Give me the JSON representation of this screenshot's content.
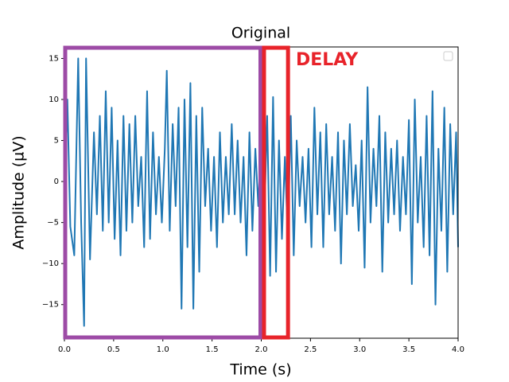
{
  "chart_data": {
    "type": "line",
    "title": "Original",
    "x_label": "Time (s)",
    "y_label": "Amplitude (µV)",
    "annotation": "DELAY",
    "regions": [
      {
        "x0": 0,
        "x1": 2.0,
        "color": "#9d4ba6"
      },
      {
        "x0": 2.02,
        "x1": 2.28,
        "color": "#e8232a"
      }
    ],
    "xlim": [
      0,
      4
    ],
    "ylim": [
      -19.1,
      16.4
    ],
    "xticks": [
      {
        "value": 0,
        "label": "0.0"
      },
      {
        "value": 0.5,
        "label": "0.5"
      },
      {
        "value": 1,
        "label": "1.0"
      },
      {
        "value": 1.5,
        "label": "1.5"
      },
      {
        "value": 2,
        "label": "2.0"
      },
      {
        "value": 2.5,
        "label": "2.5"
      },
      {
        "value": 3,
        "label": "3.0"
      },
      {
        "value": 3.5,
        "label": "3.5"
      },
      {
        "value": 4,
        "label": "4.0"
      }
    ],
    "yticks": [
      {
        "value": -15,
        "label": "−15"
      },
      {
        "value": -10,
        "label": "−10"
      },
      {
        "value": -5,
        "label": "−5"
      },
      0,
      5,
      10,
      15
    ],
    "series": [
      {
        "color": "#1f77b4",
        "x": [
          0.0,
          0.03,
          0.06,
          0.1,
          0.14,
          0.17,
          0.2,
          0.22,
          0.26,
          0.3,
          0.33,
          0.36,
          0.39,
          0.42,
          0.45,
          0.48,
          0.51,
          0.54,
          0.57,
          0.6,
          0.63,
          0.66,
          0.69,
          0.72,
          0.75,
          0.78,
          0.81,
          0.84,
          0.87,
          0.9,
          0.93,
          0.96,
          0.99,
          1.02,
          1.04,
          1.07,
          1.1,
          1.13,
          1.16,
          1.19,
          1.22,
          1.25,
          1.28,
          1.31,
          1.34,
          1.37,
          1.4,
          1.43,
          1.46,
          1.49,
          1.52,
          1.55,
          1.58,
          1.61,
          1.64,
          1.67,
          1.7,
          1.73,
          1.76,
          1.79,
          1.82,
          1.85,
          1.88,
          1.91,
          1.94,
          1.97,
          2.0,
          2.03,
          2.06,
          2.09,
          2.12,
          2.15,
          2.18,
          2.21,
          2.24,
          2.27,
          2.3,
          2.33,
          2.36,
          2.39,
          2.42,
          2.45,
          2.48,
          2.51,
          2.54,
          2.57,
          2.6,
          2.63,
          2.66,
          2.69,
          2.72,
          2.75,
          2.78,
          2.81,
          2.84,
          2.87,
          2.9,
          2.93,
          2.96,
          2.99,
          3.02,
          3.05,
          3.08,
          3.11,
          3.14,
          3.17,
          3.2,
          3.23,
          3.26,
          3.29,
          3.32,
          3.35,
          3.38,
          3.41,
          3.44,
          3.47,
          3.5,
          3.53,
          3.56,
          3.59,
          3.62,
          3.65,
          3.68,
          3.71,
          3.74,
          3.77,
          3.8,
          3.83,
          3.86,
          3.89,
          3.92,
          3.95,
          3.98,
          4.0
        ],
        "values": [
          -3,
          10,
          -5.5,
          -9,
          15,
          -5,
          -17.6,
          15,
          -9.5,
          6,
          -4,
          8,
          -6,
          11,
          -5,
          9,
          -7,
          5,
          -9,
          8,
          -6,
          7,
          -5,
          8,
          -3,
          3,
          -8,
          11,
          -7,
          6,
          -4,
          3,
          -5,
          4,
          13.5,
          -6,
          7,
          -3,
          9,
          -15.5,
          10,
          -8,
          12,
          -15.5,
          8,
          -11,
          9,
          -3,
          4,
          -6,
          3,
          -8,
          6,
          -5,
          3,
          -4,
          7,
          -4,
          5,
          -5,
          3,
          -9,
          6,
          -6,
          4,
          -3,
          6,
          -5,
          8,
          -11.5,
          10.3,
          -11,
          5,
          -7,
          3,
          -7,
          8,
          -9,
          5,
          -3,
          3,
          -5,
          4,
          -8,
          9,
          -4,
          6,
          -8,
          7,
          -4,
          3,
          -6,
          6,
          -10,
          5,
          -4,
          7,
          -3,
          2,
          -6,
          5,
          -10.5,
          11.5,
          -5,
          4,
          -3,
          8,
          -11,
          6,
          -5,
          4,
          -4,
          5,
          -6,
          3,
          -4,
          7.5,
          -12.5,
          10,
          -5,
          3,
          -8,
          8,
          -9,
          11,
          -15,
          4,
          -6,
          9,
          -11,
          7,
          -4,
          6,
          -8
        ]
      }
    ]
  }
}
